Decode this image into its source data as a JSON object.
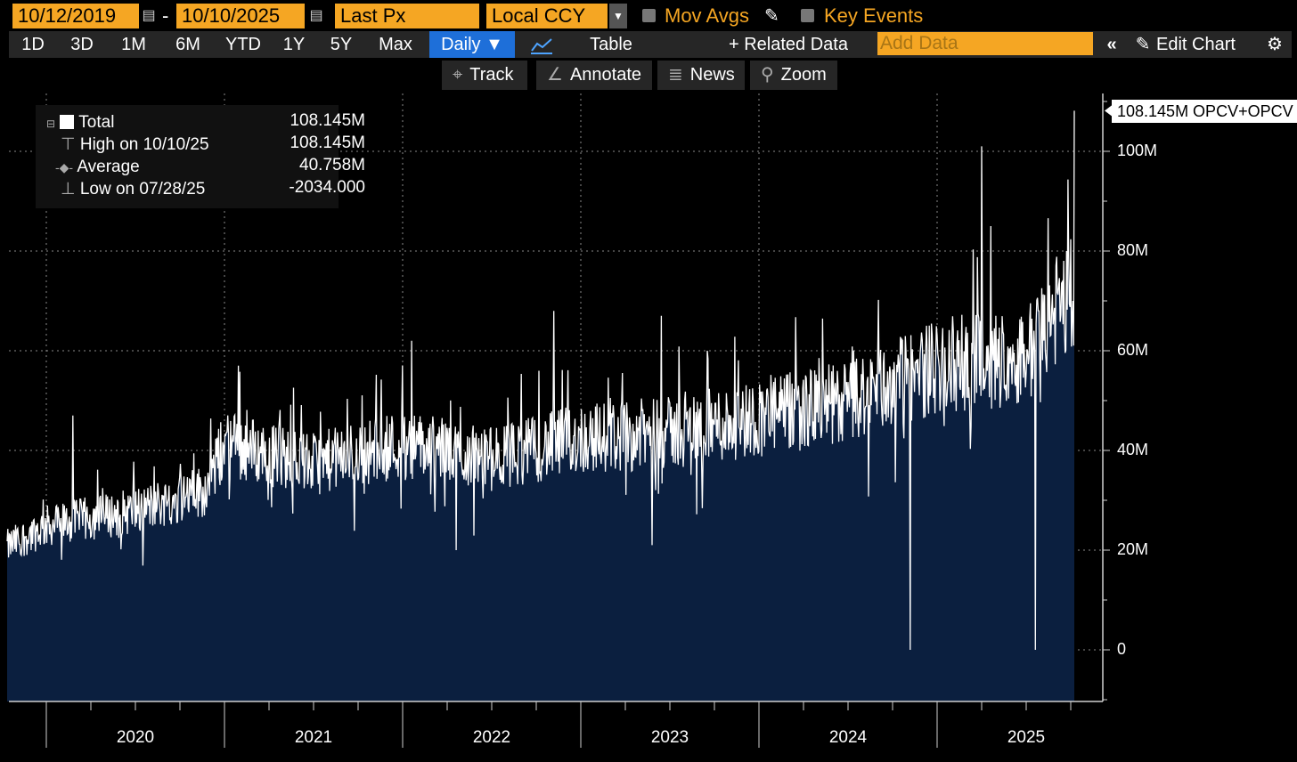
{
  "toolbar": {
    "start_date": "10/12/2019",
    "date_sep": "-",
    "end_date": "10/10/2025",
    "price_field": "Last Px",
    "currency": "Local CCY",
    "mov_avgs": "Mov Avgs",
    "key_events": "Key Events"
  },
  "ranges": [
    "1D",
    "3D",
    "1M",
    "6M",
    "YTD",
    "1Y",
    "5Y",
    "Max"
  ],
  "periodicity": "Daily ▼",
  "table_label": "Table",
  "related_data": "+ Related Data",
  "add_data_placeholder": "Add Data",
  "collapse": "«",
  "edit_chart": "Edit Chart",
  "tools": {
    "track": "Track",
    "annotate": "Annotate",
    "news": "News",
    "zoom": "Zoom"
  },
  "legend": {
    "total_label": "Total",
    "total_value": "108.145M",
    "high_label": "High on 10/10/25",
    "high_value": "108.145M",
    "avg_label": "Average",
    "avg_value": "40.758M",
    "low_label": "Low on 07/28/25",
    "low_value": "-2034.000"
  },
  "last_value_tag": "108.145M OPCV+OPCV",
  "colors": {
    "accent": "#f5a623",
    "fill": "#0b1f3f",
    "line": "#ffffff",
    "selected": "#1e6fd9"
  },
  "chart_data": {
    "type": "area",
    "title": "",
    "series_name": "OPCV+OPCV",
    "unit": "M",
    "ylim": [
      -10,
      115
    ],
    "yticks": [
      0,
      20,
      40,
      60,
      80,
      100
    ],
    "ytick_labels": [
      "0",
      "20M",
      "40M",
      "60M",
      "80M",
      "100M"
    ],
    "xticks": [
      "2020",
      "2021",
      "2022",
      "2023",
      "2024",
      "2025"
    ],
    "x_range": [
      "2019-10-12",
      "2025-10-10"
    ],
    "trend_points": [
      {
        "t": 2019.78,
        "v": 20
      },
      {
        "t": 2020.0,
        "v": 24
      },
      {
        "t": 2020.5,
        "v": 27
      },
      {
        "t": 2020.9,
        "v": 31
      },
      {
        "t": 2021.0,
        "v": 40
      },
      {
        "t": 2021.5,
        "v": 36
      },
      {
        "t": 2022.0,
        "v": 40
      },
      {
        "t": 2022.5,
        "v": 37
      },
      {
        "t": 2023.0,
        "v": 41
      },
      {
        "t": 2023.5,
        "v": 42
      },
      {
        "t": 2024.0,
        "v": 45
      },
      {
        "t": 2024.5,
        "v": 48
      },
      {
        "t": 2025.0,
        "v": 55
      },
      {
        "t": 2025.5,
        "v": 57
      },
      {
        "t": 2025.77,
        "v": 70
      }
    ],
    "notable_points": [
      {
        "t": 2020.15,
        "v": 47
      },
      {
        "t": 2021.08,
        "v": 57
      },
      {
        "t": 2022.05,
        "v": 62
      },
      {
        "t": 2022.3,
        "v": 20
      },
      {
        "t": 2022.85,
        "v": 68
      },
      {
        "t": 2023.45,
        "v": 67
      },
      {
        "t": 2023.4,
        "v": 21
      },
      {
        "t": 2024.85,
        "v": 0
      },
      {
        "t": 2025.25,
        "v": 101
      },
      {
        "t": 2025.3,
        "v": 85
      },
      {
        "t": 2025.55,
        "v": 0
      },
      {
        "t": 2025.77,
        "v": 108.145
      }
    ],
    "stats": {
      "high": 108.145,
      "average": 40.758,
      "low": -0.002034
    }
  }
}
